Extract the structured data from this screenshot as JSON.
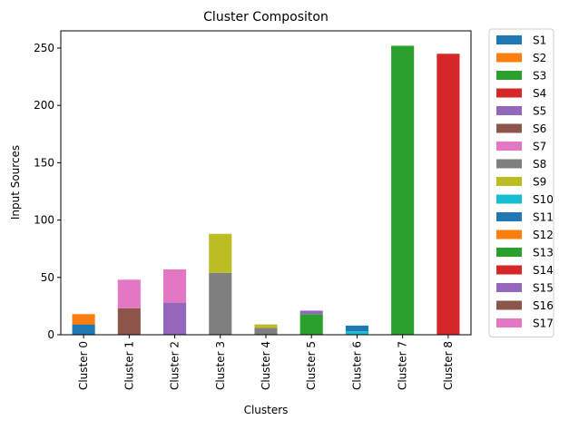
{
  "chart_data": {
    "type": "bar",
    "stacked": true,
    "title": "Cluster Compositon",
    "xlabel": "Clusters",
    "ylabel": "Input Sources",
    "ylim": [
      0,
      265
    ],
    "yticks": [
      0,
      50,
      100,
      150,
      200,
      250
    ],
    "grid": false,
    "legend_position": "outside-right",
    "categories": [
      "Cluster 0",
      "Cluster 1",
      "Cluster 2",
      "Cluster 3",
      "Cluster 4",
      "Cluster 5",
      "Cluster 6",
      "Cluster 7",
      "Cluster 8"
    ],
    "series": [
      {
        "name": "S1",
        "color": "#1f77b4",
        "values": [
          9,
          0,
          0,
          0,
          0,
          0,
          0,
          0,
          0
        ]
      },
      {
        "name": "S2",
        "color": "#ff7f0e",
        "values": [
          9,
          0,
          0,
          0,
          0,
          0,
          0,
          0,
          0
        ]
      },
      {
        "name": "S3",
        "color": "#2ca02c",
        "values": [
          0,
          0,
          0,
          0,
          0,
          0,
          0,
          0,
          0
        ]
      },
      {
        "name": "S4",
        "color": "#d62728",
        "values": [
          0,
          0,
          0,
          0,
          0,
          0,
          0,
          0,
          0
        ]
      },
      {
        "name": "S5",
        "color": "#9467bd",
        "values": [
          0,
          0,
          0,
          0,
          0,
          0,
          0,
          0,
          0
        ]
      },
      {
        "name": "S6",
        "color": "#8c564b",
        "values": [
          0,
          23,
          0,
          0,
          0,
          0,
          0,
          0,
          0
        ]
      },
      {
        "name": "S7",
        "color": "#e377c2",
        "values": [
          0,
          25,
          0,
          0,
          0,
          0,
          0,
          0,
          0
        ]
      },
      {
        "name": "S8",
        "color": "#7f7f7f",
        "values": [
          0,
          0,
          0,
          54,
          6,
          0,
          0,
          0,
          0
        ]
      },
      {
        "name": "S9",
        "color": "#bcbd22",
        "values": [
          0,
          0,
          0,
          34,
          3,
          0,
          0,
          0,
          0
        ]
      },
      {
        "name": "S10",
        "color": "#17becf",
        "values": [
          0,
          0,
          0,
          0,
          0,
          0,
          3,
          0,
          0
        ]
      },
      {
        "name": "S11",
        "color": "#1f77b4",
        "values": [
          0,
          0,
          0,
          0,
          0,
          0,
          5,
          0,
          0
        ]
      },
      {
        "name": "S12",
        "color": "#ff7f0e",
        "values": [
          0,
          0,
          0,
          0,
          0,
          0,
          0,
          0,
          0
        ]
      },
      {
        "name": "S13",
        "color": "#2ca02c",
        "values": [
          0,
          0,
          0,
          0,
          0,
          18,
          0,
          252,
          0
        ]
      },
      {
        "name": "S14",
        "color": "#d62728",
        "values": [
          0,
          0,
          0,
          0,
          0,
          0,
          0,
          0,
          245
        ]
      },
      {
        "name": "S15",
        "color": "#9467bd",
        "values": [
          0,
          0,
          28,
          0,
          0,
          3,
          0,
          0,
          0
        ]
      },
      {
        "name": "S16",
        "color": "#8c564b",
        "values": [
          0,
          0,
          0,
          0,
          0,
          0,
          0,
          0,
          0
        ]
      },
      {
        "name": "S17",
        "color": "#e377c2",
        "values": [
          0,
          0,
          29,
          0,
          0,
          0,
          0,
          0,
          0
        ]
      }
    ]
  }
}
